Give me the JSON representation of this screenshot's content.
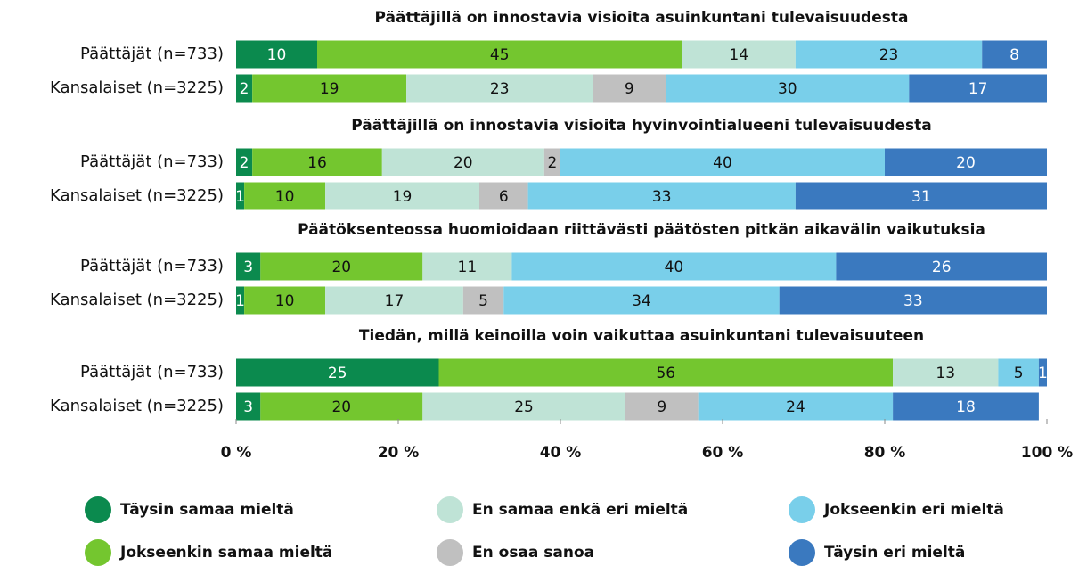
{
  "chart_data": {
    "type": "stacked-bar",
    "xlim": [
      0,
      100
    ],
    "xticks": [
      {
        "value": 0,
        "label": "0 %"
      },
      {
        "value": 20,
        "label": "20 %"
      },
      {
        "value": 40,
        "label": "40 %"
      },
      {
        "value": 60,
        "label": "60 %"
      },
      {
        "value": 80,
        "label": "80 %"
      },
      {
        "value": 100,
        "label": "100 %"
      }
    ],
    "panels": [
      {
        "title": "Päättäjillä on innostavia visioita asuinkuntani tulevaisuudesta",
        "categories": [
          "Päättäjät (n=733)",
          "Kansalaiset (n=3225)"
        ]
      },
      {
        "title": "Päättäjillä on innostavia visioita hyvinvointialueeni tulevaisuudesta",
        "categories": [
          "Päättäjät (n=733)",
          "Kansalaiset (n=3225)"
        ]
      },
      {
        "title": "Päätöksenteossa huomioidaan riittävästi päätösten pitkän aikavälin vaikutuksia",
        "categories": [
          "Päättäjät (n=733)",
          "Kansalaiset (n=3225)"
        ]
      },
      {
        "title": "Tiedän, millä keinoilla voin vaikuttaa asuinkuntani tulevaisuuteen",
        "categories": [
          "Päättäjät (n=733)",
          "Kansalaiset (n=3225)"
        ]
      }
    ],
    "series": [
      {
        "name": "Täysin samaa mieltä",
        "color": "#0b8a4e",
        "values": [
          10,
          2,
          2,
          1,
          3,
          1,
          25,
          3
        ]
      },
      {
        "name": "Jokseenkin samaa mieltä",
        "color": "#74c62f",
        "values": [
          45,
          19,
          16,
          10,
          20,
          10,
          56,
          20
        ]
      },
      {
        "name": "En samaa enkä eri mieltä",
        "color": "#bfe3d6",
        "values": [
          14,
          23,
          20,
          19,
          11,
          17,
          13,
          25
        ]
      },
      {
        "name": "En osaa sanoa",
        "color": "#c0c0c0",
        "values": [
          0,
          9,
          2,
          6,
          0,
          5,
          0,
          9
        ]
      },
      {
        "name": "Jokseenkin eri mieltä",
        "color": "#79cfea",
        "values": [
          23,
          30,
          40,
          33,
          40,
          34,
          5,
          24
        ]
      },
      {
        "name": "Täysin eri mieltä",
        "color": "#3a79bf",
        "values": [
          8,
          17,
          20,
          31,
          26,
          33,
          1,
          18
        ]
      }
    ]
  }
}
